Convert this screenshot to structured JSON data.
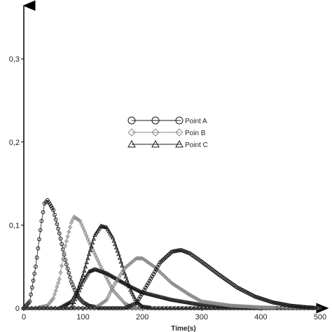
{
  "chart_data": {
    "type": "scatter",
    "title": "",
    "xlabel": "Time(s)",
    "ylabel": "",
    "xlim": [
      0,
      500
    ],
    "ylim": [
      0,
      0.36
    ],
    "x_ticks": [
      0,
      100,
      200,
      300,
      400,
      500
    ],
    "y_ticks": [
      0,
      0.1,
      0.2,
      0.3
    ],
    "x_tick_labels": [
      "0",
      "100",
      "200",
      "300",
      "400",
      "500"
    ],
    "y_tick_labels": [
      "0",
      "0,1",
      "0,2",
      "0,3"
    ],
    "grid": false,
    "legend_position": "center",
    "series": [
      {
        "name": "Point A",
        "marker": "circle",
        "color": "#1a1a1a",
        "points": [
          [
            0,
            0
          ],
          [
            10,
            0.008
          ],
          [
            20,
            0.05
          ],
          [
            30,
            0.105
          ],
          [
            35,
            0.126
          ],
          [
            40,
            0.13
          ],
          [
            50,
            0.118
          ],
          [
            60,
            0.09
          ],
          [
            70,
            0.058
          ],
          [
            80,
            0.032
          ],
          [
            90,
            0.015
          ],
          [
            100,
            0.007
          ],
          [
            110,
            0.003
          ],
          [
            130,
            0.0
          ],
          [
            200,
            0.0
          ],
          [
            300,
            0.0
          ],
          [
            400,
            0.0
          ],
          [
            500,
            0.0
          ]
        ]
      },
      {
        "name": "Poin B",
        "marker": "diamond",
        "color": "#8a8a8a",
        "points": [
          [
            0,
            0
          ],
          [
            20,
            0.0
          ],
          [
            40,
            0.003
          ],
          [
            50,
            0.012
          ],
          [
            60,
            0.035
          ],
          [
            70,
            0.075
          ],
          [
            80,
            0.103
          ],
          [
            85,
            0.11
          ],
          [
            95,
            0.105
          ],
          [
            110,
            0.08
          ],
          [
            130,
            0.05
          ],
          [
            150,
            0.022
          ],
          [
            170,
            0.006
          ],
          [
            185,
            0.0
          ],
          [
            200,
            0.0
          ],
          [
            300,
            0.0
          ],
          [
            400,
            0.0
          ],
          [
            500,
            0.0
          ]
        ]
      },
      {
        "name": "Point C",
        "marker": "triangle",
        "color": "#1a1a1a",
        "points": [
          [
            0,
            0
          ],
          [
            60,
            0.0
          ],
          [
            80,
            0.008
          ],
          [
            90,
            0.02
          ],
          [
            100,
            0.04
          ],
          [
            110,
            0.065
          ],
          [
            120,
            0.088
          ],
          [
            130,
            0.099
          ],
          [
            140,
            0.097
          ],
          [
            150,
            0.085
          ],
          [
            160,
            0.065
          ],
          [
            170,
            0.042
          ],
          [
            180,
            0.022
          ],
          [
            190,
            0.008
          ],
          [
            200,
            0.002
          ],
          [
            220,
            0.0
          ],
          [
            300,
            0.0
          ],
          [
            400,
            0.0
          ],
          [
            500,
            0.0
          ]
        ]
      },
      {
        "name": "",
        "marker": "triangle",
        "color": "#1a1a1a",
        "points": [
          [
            0,
            0
          ],
          [
            80,
            0.0
          ],
          [
            100,
            0.032
          ],
          [
            110,
            0.044
          ],
          [
            120,
            0.047
          ],
          [
            140,
            0.042
          ],
          [
            160,
            0.034
          ],
          [
            180,
            0.026
          ],
          [
            200,
            0.019
          ],
          [
            250,
            0.01
          ],
          [
            300,
            0.004
          ],
          [
            350,
            0.002
          ],
          [
            400,
            0.0
          ],
          [
            500,
            0.0
          ]
        ]
      },
      {
        "name": "",
        "marker": "diamond",
        "color": "#8a8a8a",
        "points": [
          [
            0,
            0
          ],
          [
            120,
            0.0
          ],
          [
            140,
            0.01
          ],
          [
            150,
            0.025
          ],
          [
            170,
            0.048
          ],
          [
            190,
            0.06
          ],
          [
            200,
            0.06
          ],
          [
            220,
            0.05
          ],
          [
            250,
            0.03
          ],
          [
            280,
            0.016
          ],
          [
            300,
            0.008
          ],
          [
            350,
            0.003
          ],
          [
            400,
            0.001
          ],
          [
            450,
            0.0
          ],
          [
            500,
            0.0
          ]
        ]
      },
      {
        "name": "",
        "marker": "circle",
        "color": "#1a1a1a",
        "points": [
          [
            0,
            0
          ],
          [
            170,
            0.0
          ],
          [
            190,
            0.006
          ],
          [
            210,
            0.03
          ],
          [
            230,
            0.055
          ],
          [
            250,
            0.068
          ],
          [
            265,
            0.07
          ],
          [
            280,
            0.066
          ],
          [
            300,
            0.056
          ],
          [
            330,
            0.04
          ],
          [
            360,
            0.025
          ],
          [
            390,
            0.014
          ],
          [
            420,
            0.007
          ],
          [
            450,
            0.003
          ],
          [
            480,
            0.001
          ],
          [
            500,
            0.0
          ]
        ]
      }
    ]
  }
}
